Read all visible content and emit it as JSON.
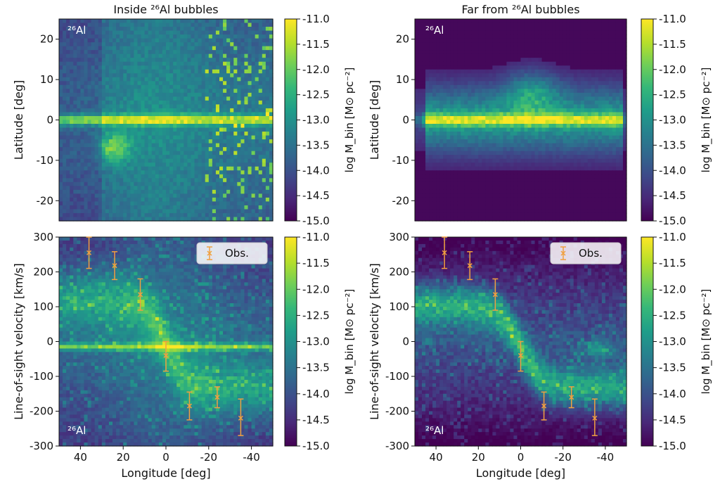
{
  "colors": {
    "colormap": [
      "#440154",
      "#482878",
      "#3e4989",
      "#31688e",
      "#26828e",
      "#1f9e89",
      "#35b779",
      "#6ece58",
      "#b5de2b",
      "#fde725"
    ],
    "errorbar": "#f0a040",
    "axis": "#111111"
  },
  "chart_data": [
    {
      "type": "heatmap",
      "panel": "top-left",
      "title": "Inside ²⁶Al bubbles",
      "annotation": "²⁶Al",
      "annotation_position": "top-left",
      "xlabel": "",
      "ylabel": "Latitude [deg]",
      "xlim": [
        50,
        -50
      ],
      "ylim": [
        -25,
        25
      ],
      "yticks": [
        20,
        10,
        0,
        -10,
        -20
      ],
      "xticks": [],
      "colorbar": {
        "label": "log M_bin [M⊙ pc⁻²]",
        "range": [
          -15.0,
          -11.0
        ],
        "ticks": [
          "-11.0",
          "-11.5",
          "-12.0",
          "-12.5",
          "-13.0",
          "-13.5",
          "-14.0",
          "-14.5",
          "-15.0"
        ]
      },
      "description_of_distribution": "thin bright band along latitude 0 across all longitudes; bright patches near longitude 20-30 at latitude -5 to -10; scattered bright cells at longitudes -20 to -45"
    },
    {
      "type": "heatmap",
      "panel": "top-right",
      "title": "Far from ²⁶Al bubbles",
      "annotation": "²⁶Al",
      "annotation_position": "top-left",
      "xlabel": "",
      "ylabel": "Latitude [deg]",
      "xlim": [
        50,
        -50
      ],
      "ylim": [
        -25,
        25
      ],
      "yticks": [
        20,
        10,
        0,
        -10,
        -20
      ],
      "xticks": [],
      "colorbar": {
        "label": "log M_bin [M⊙ pc⁻²]",
        "range": [
          -15.0,
          -11.0
        ],
        "ticks": [
          "-11.0",
          "-11.5",
          "-12.0",
          "-12.5",
          "-13.0",
          "-13.5",
          "-14.0",
          "-14.5",
          "-15.0"
        ]
      },
      "description_of_distribution": "emission concentrated within latitude ±10 with bright band at 0; bulge to latitude ~13 near longitude -5; empty elsewhere"
    },
    {
      "type": "heatmap",
      "panel": "bottom-left",
      "title": "",
      "annotation": "²⁶Al",
      "annotation_position": "bottom-left",
      "xlabel": "Longitude [deg]",
      "ylabel": "Line-of-sight velocity [km/s]",
      "xlim": [
        50,
        -50
      ],
      "ylim": [
        -300,
        300
      ],
      "xticks": [
        40,
        20,
        0,
        -20,
        -40
      ],
      "yticks": [
        300,
        200,
        100,
        0,
        -100,
        -200,
        -300
      ],
      "legend": {
        "label": "Obs.",
        "position": "top-right"
      },
      "colorbar": {
        "label": "log M_bin [M⊙ pc⁻²]",
        "range": [
          -15.0,
          -11.0
        ],
        "ticks": [
          "-11.0",
          "-11.5",
          "-12.0",
          "-12.5",
          "-13.0",
          "-13.5",
          "-14.0",
          "-14.5",
          "-15.0"
        ]
      },
      "observations": [
        {
          "x": 36,
          "y": 255,
          "yerr_low": 45,
          "yerr_high": 45
        },
        {
          "x": 24,
          "y": 218,
          "yerr_low": 40,
          "yerr_high": 40
        },
        {
          "x": 12,
          "y": 135,
          "yerr_low": 45,
          "yerr_high": 45
        },
        {
          "x": 0,
          "y": -40,
          "yerr_low": 45,
          "yerr_high": 40
        },
        {
          "x": -11,
          "y": -185,
          "yerr_low": 40,
          "yerr_high": 40
        },
        {
          "x": -24,
          "y": -160,
          "yerr_low": 30,
          "yerr_high": 30
        },
        {
          "x": -35,
          "y": -220,
          "yerr_low": 50,
          "yerr_high": 55
        }
      ]
    },
    {
      "type": "heatmap",
      "panel": "bottom-right",
      "title": "",
      "annotation": "²⁶Al",
      "annotation_position": "bottom-left",
      "xlabel": "Longitude [deg]",
      "ylabel": "Line-of-sight velocity [km/s]",
      "xlim": [
        50,
        -50
      ],
      "ylim": [
        -300,
        300
      ],
      "xticks": [
        40,
        20,
        0,
        -20,
        -40
      ],
      "yticks": [
        300,
        200,
        100,
        0,
        -100,
        -200,
        -300
      ],
      "legend": {
        "label": "Obs.",
        "position": "top-right"
      },
      "colorbar": {
        "label": "log M_bin [M⊙ pc⁻²]",
        "range": [
          -15.0,
          -11.0
        ],
        "ticks": [
          "-11.0",
          "-11.5",
          "-12.0",
          "-12.5",
          "-13.0",
          "-13.5",
          "-14.0",
          "-14.5",
          "-15.0"
        ]
      },
      "observations": [
        {
          "x": 36,
          "y": 255,
          "yerr_low": 45,
          "yerr_high": 45
        },
        {
          "x": 24,
          "y": 218,
          "yerr_low": 40,
          "yerr_high": 40
        },
        {
          "x": 12,
          "y": 135,
          "yerr_low": 45,
          "yerr_high": 45
        },
        {
          "x": 0,
          "y": -40,
          "yerr_low": 45,
          "yerr_high": 40
        },
        {
          "x": -11,
          "y": -185,
          "yerr_low": 40,
          "yerr_high": 40
        },
        {
          "x": -24,
          "y": -160,
          "yerr_low": 30,
          "yerr_high": 30
        },
        {
          "x": -35,
          "y": -220,
          "yerr_low": 50,
          "yerr_high": 55
        }
      ]
    }
  ]
}
